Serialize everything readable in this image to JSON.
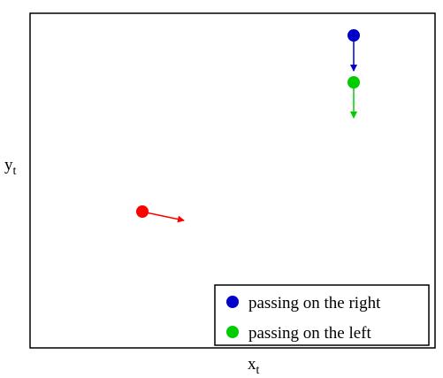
{
  "x_label": {
    "base": "x",
    "sub": "t"
  },
  "y_label": {
    "base": "y",
    "sub": "t"
  },
  "legend": [
    {
      "name": "passing on the right",
      "color": "#0000c8"
    },
    {
      "name": "passing on the left",
      "color": "#00cc00"
    }
  ],
  "other_color": "#ff0000"
}
